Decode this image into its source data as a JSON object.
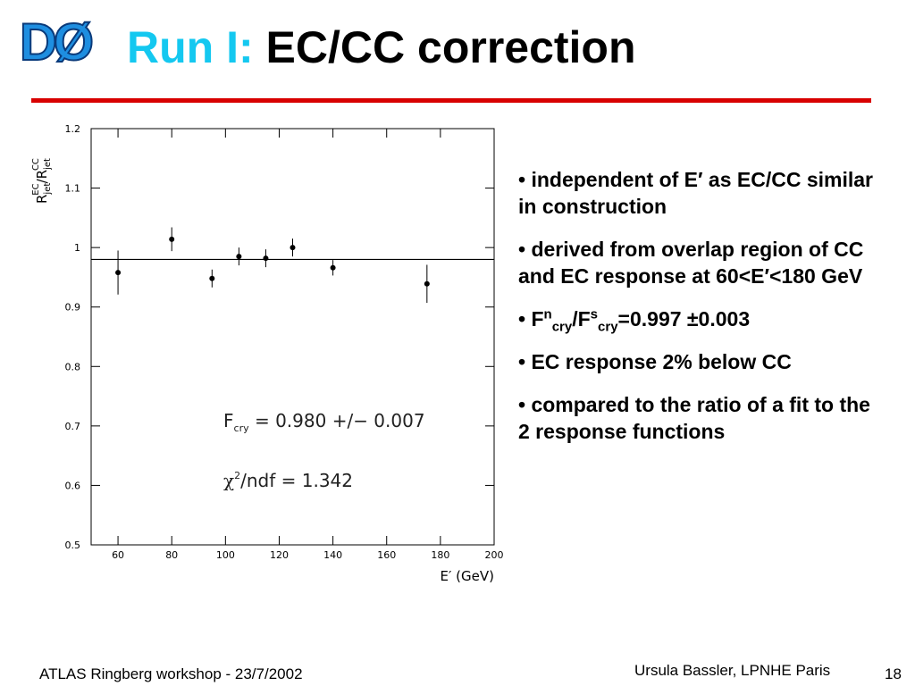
{
  "logo": "DØ",
  "title": {
    "prefix": "Run I:",
    "main": "EC/CC correction"
  },
  "bullets": [
    {
      "text": "independent of E′ as EC/CC similar in construction"
    },
    {
      "text": "derived from overlap region of CC and EC response at 60<E′<180 GeV"
    },
    {
      "parts": [
        "F",
        "n",
        "cry",
        "/F",
        "s",
        "cry",
        "=0.997 ±0.003"
      ]
    },
    {
      "text": "EC response 2% below CC"
    },
    {
      "text": "compared to the ratio of a fit to the 2 response functions"
    }
  ],
  "footer": {
    "left": "ATLAS Ringberg workshop - 23/7/2002",
    "right": "Ursula Bassler, LPNHE Paris",
    "page": "18"
  },
  "chart_data": {
    "type": "scatter",
    "x": [
      60,
      80,
      95,
      105,
      115,
      125,
      140,
      175
    ],
    "values": [
      0.958,
      1.014,
      0.948,
      0.985,
      0.982,
      1.0,
      0.966,
      0.939
    ],
    "errors": [
      0.037,
      0.02,
      0.015,
      0.015,
      0.015,
      0.015,
      0.013,
      0.032
    ],
    "fit": 0.98,
    "color": "#000000",
    "xlim": [
      50,
      200
    ],
    "xticks": [
      60,
      80,
      100,
      120,
      140,
      160,
      180,
      200
    ],
    "ylim": [
      0.5,
      1.2
    ],
    "yticks": [
      0.5,
      0.6,
      0.7,
      0.8,
      0.9,
      1,
      1.1,
      1.2
    ],
    "x_label": "E′ (GeV)",
    "y_label": [
      "R",
      "jet",
      "EC",
      "/R",
      "jet",
      "CC"
    ],
    "annotations": [
      [
        "F",
        "cry",
        " = 0.980 +/− 0.007"
      ],
      [
        "χ",
        "2",
        "/ndf = 1.342"
      ]
    ]
  }
}
